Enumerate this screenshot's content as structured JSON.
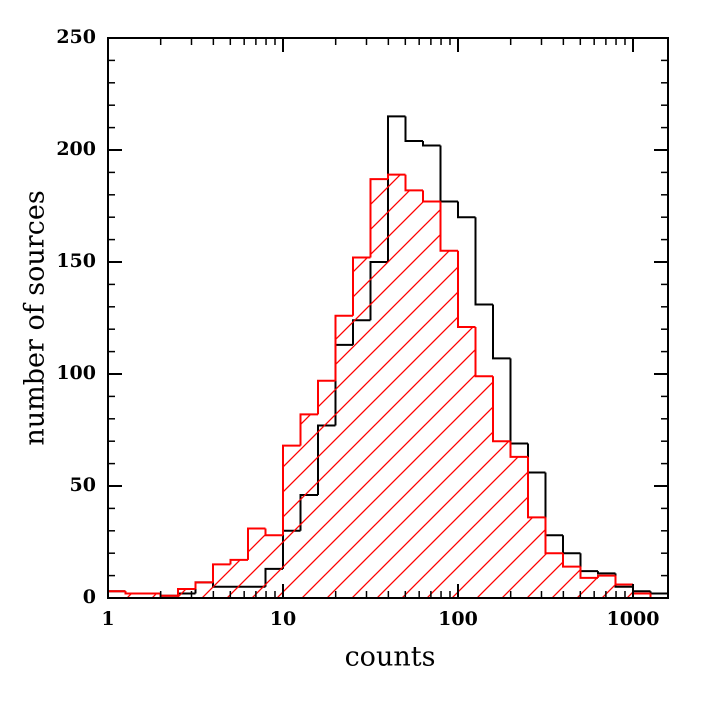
{
  "chart_data": {
    "type": "histogram",
    "x_label": "counts",
    "y_label": "number of sources",
    "xscale": "log",
    "xlim": [
      1,
      1585
    ],
    "ylim": [
      0,
      250
    ],
    "xticks": [
      1,
      10,
      100,
      1000
    ],
    "xminorticks": [
      2,
      3,
      4,
      5,
      6,
      7,
      8,
      9,
      20,
      30,
      40,
      50,
      60,
      70,
      80,
      90,
      200,
      300,
      400,
      500,
      600,
      700,
      800,
      900
    ],
    "yticks": [
      0,
      50,
      100,
      150,
      200,
      250
    ],
    "yminorticks": [
      10,
      20,
      30,
      40,
      60,
      70,
      80,
      90,
      110,
      120,
      130,
      140,
      160,
      170,
      180,
      190,
      210,
      220,
      230,
      240
    ],
    "bins": [
      1,
      1.259,
      1.585,
      1.995,
      2.512,
      3.162,
      3.981,
      5.012,
      6.31,
      7.943,
      10,
      12.59,
      15.85,
      19.95,
      25.12,
      31.62,
      39.81,
      50.12,
      63.1,
      79.43,
      100,
      125.9,
      158.5,
      199.5,
      251.2,
      316.2,
      398.1,
      501.2,
      631,
      794.3,
      1000,
      1259,
      1585
    ],
    "series": [
      {
        "color": "#000000",
        "hatch": false,
        "values": [
          3,
          2,
          2,
          1,
          2,
          7,
          5,
          5,
          5,
          13,
          30,
          46,
          77,
          113,
          124,
          150,
          215,
          204,
          202,
          177,
          170,
          131,
          107,
          69,
          56,
          28,
          20,
          12,
          11,
          5,
          3,
          2
        ]
      },
      {
        "color": "#ff0000",
        "hatch": true,
        "values": [
          3,
          2,
          2,
          1,
          4,
          7,
          15,
          17,
          31,
          28,
          68,
          82,
          97,
          126,
          152,
          187,
          189,
          182,
          177,
          155,
          121,
          99,
          70,
          63,
          36,
          20,
          14,
          9,
          10,
          6,
          2,
          0
        ]
      }
    ]
  }
}
